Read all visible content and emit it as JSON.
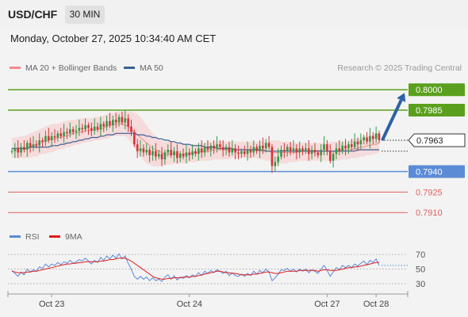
{
  "header": {
    "symbol": "USD/CHF",
    "interval": "30 MIN"
  },
  "timestamp": "Monday, October 27, 2025 10:34:40 AM CET",
  "legend_main": {
    "ma20_label": "MA 20 + Bollinger Bands",
    "ma50_label": "MA 50"
  },
  "credit": "Research © 2025 Trading Central",
  "legend_rsi": {
    "rsi_label": "RSI",
    "ma_label": "9MA"
  },
  "colors": {
    "resistance": "#5aa01e",
    "support": "#5b8bd5",
    "support_minor": "#e06060",
    "candle_up": "#2f9a47",
    "candle_down": "#d6333a",
    "bollinger_fill": "#f6d3d3",
    "ma20": "#f18b8b",
    "ma50": "#3a5f97",
    "arrow": "#2c62a8",
    "rsi": "#5c8ad8",
    "rsi_ma": "#e01b1b"
  },
  "chart_data": [
    {
      "type": "candlestick",
      "title": "USD/CHF",
      "ylim": [
        0.7902,
        0.801
      ],
      "x_ticks": [
        {
          "label": "Oct 23",
          "index": 13
        },
        {
          "label": "Oct 24",
          "index": 58
        },
        {
          "label": "Oct 27",
          "index": 103
        },
        {
          "label": "Oct 28",
          "index": 119
        }
      ],
      "current_price": {
        "label": "0.7963",
        "value": 0.7963
      },
      "levels": [
        {
          "label": "0.8000",
          "value": 0.8,
          "kind": "resistance",
          "badge": true
        },
        {
          "label": "0.7985",
          "value": 0.7985,
          "kind": "resistance",
          "badge": true
        },
        {
          "label": "0.7940",
          "value": 0.794,
          "kind": "support",
          "badge": true
        },
        {
          "label": "0.7925",
          "value": 0.7925,
          "kind": "support_minor",
          "badge": false
        },
        {
          "label": "0.7910",
          "value": 0.791,
          "kind": "support_minor",
          "badge": false
        }
      ],
      "target_arrow": {
        "from": 0.7963,
        "to": 0.8
      },
      "close": [
        0.7955,
        0.7957,
        0.7954,
        0.7958,
        0.7956,
        0.7961,
        0.7958,
        0.796,
        0.7959,
        0.7963,
        0.7962,
        0.7966,
        0.7963,
        0.7966,
        0.7965,
        0.7968,
        0.7966,
        0.7969,
        0.7968,
        0.7971,
        0.7969,
        0.797,
        0.7972,
        0.7971,
        0.7974,
        0.7972,
        0.797,
        0.7973,
        0.7971,
        0.7975,
        0.7973,
        0.7977,
        0.7974,
        0.7978,
        0.7976,
        0.798,
        0.7976,
        0.7979,
        0.7973,
        0.7969,
        0.796,
        0.7955,
        0.7957,
        0.7954,
        0.7956,
        0.7952,
        0.7955,
        0.7951,
        0.7953,
        0.7949,
        0.7954,
        0.7956,
        0.7952,
        0.7955,
        0.795,
        0.7953,
        0.7951,
        0.7954,
        0.7952,
        0.7955,
        0.7953,
        0.7957,
        0.7954,
        0.7958,
        0.7956,
        0.7959,
        0.7957,
        0.796,
        0.7958,
        0.7956,
        0.7958,
        0.7954,
        0.7957,
        0.7954,
        0.7953,
        0.7955,
        0.7953,
        0.7956,
        0.7954,
        0.7958,
        0.7955,
        0.7959,
        0.7957,
        0.7961,
        0.7958,
        0.7944,
        0.7947,
        0.7951,
        0.7956,
        0.7955,
        0.7958,
        0.7955,
        0.7957,
        0.7954,
        0.7957,
        0.7955,
        0.7957,
        0.7953,
        0.7956,
        0.7954,
        0.7952,
        0.7956,
        0.796,
        0.7955,
        0.7948,
        0.7953,
        0.7957,
        0.7955,
        0.7959,
        0.7957,
        0.796,
        0.7958,
        0.7962,
        0.796,
        0.7963,
        0.7965,
        0.7962,
        0.7966,
        0.7964,
        0.7968,
        0.7963
      ],
      "ma20": [
        0.7957,
        0.7957,
        0.7957,
        0.7957,
        0.7957,
        0.7957,
        0.7958,
        0.7959,
        0.796,
        0.7961,
        0.7962,
        0.7962,
        0.7963,
        0.7964,
        0.7964,
        0.7965,
        0.7965,
        0.7966,
        0.7966,
        0.7967,
        0.7968,
        0.7968,
        0.7969,
        0.7969,
        0.797,
        0.797,
        0.797,
        0.7971,
        0.7971,
        0.7971,
        0.7972,
        0.7973,
        0.7974,
        0.7974,
        0.7975,
        0.7975,
        0.7975,
        0.7974,
        0.7973,
        0.7971,
        0.7969,
        0.7967,
        0.7965,
        0.7963,
        0.7961,
        0.7959,
        0.7957,
        0.7956,
        0.7955,
        0.7954,
        0.7953,
        0.7953,
        0.7953,
        0.7953,
        0.7953,
        0.7953,
        0.7953,
        0.7953,
        0.7953,
        0.7954,
        0.7954,
        0.7954,
        0.7955,
        0.7955,
        0.7955,
        0.7955,
        0.7956,
        0.7956,
        0.7956,
        0.7956,
        0.7956,
        0.7956,
        0.7956,
        0.7956,
        0.7956,
        0.7956,
        0.7956,
        0.7956,
        0.7956,
        0.7956,
        0.7956,
        0.7955,
        0.7955,
        0.7955,
        0.7955,
        0.7954,
        0.7954,
        0.7954,
        0.7954,
        0.7954,
        0.7954,
        0.7954,
        0.7954,
        0.7954,
        0.7955,
        0.7955,
        0.7955,
        0.7955,
        0.7955,
        0.7955,
        0.7955,
        0.7955,
        0.7955,
        0.7955,
        0.7955,
        0.7955,
        0.7955,
        0.7955,
        0.7956,
        0.7956,
        0.7956,
        0.7956,
        0.7957,
        0.7957,
        0.7958,
        0.7958,
        0.7959,
        0.7959,
        0.796,
        0.796,
        0.7961
      ],
      "ma50": [
        0.7957,
        0.7957,
        0.7957,
        0.7957,
        0.7957,
        0.7957,
        0.7958,
        0.7958,
        0.7958,
        0.7958,
        0.7958,
        0.7958,
        0.7958,
        0.7959,
        0.7959,
        0.7959,
        0.796,
        0.796,
        0.7961,
        0.7961,
        0.7962,
        0.7962,
        0.7963,
        0.7963,
        0.7964,
        0.7964,
        0.7965,
        0.7965,
        0.7965,
        0.7966,
        0.7966,
        0.7967,
        0.7967,
        0.7967,
        0.7968,
        0.7968,
        0.7968,
        0.7968,
        0.7968,
        0.7968,
        0.7968,
        0.7967,
        0.7967,
        0.7967,
        0.7966,
        0.7966,
        0.7965,
        0.7965,
        0.7964,
        0.7964,
        0.7963,
        0.7963,
        0.7962,
        0.7962,
        0.7961,
        0.7961,
        0.796,
        0.796,
        0.796,
        0.7959,
        0.7959,
        0.7959,
        0.7959,
        0.7958,
        0.7958,
        0.7958,
        0.7958,
        0.7957,
        0.7957,
        0.7957,
        0.7957,
        0.7957,
        0.7957,
        0.7956,
        0.7956,
        0.7956,
        0.7956,
        0.7956,
        0.7956,
        0.7956,
        0.7956,
        0.7956,
        0.7956,
        0.7955,
        0.7955,
        0.7955,
        0.7955,
        0.7955,
        0.7955,
        0.7955,
        0.7955,
        0.7955,
        0.7955,
        0.7955,
        0.7955,
        0.7955,
        0.7955,
        0.7955,
        0.7955,
        0.7955,
        0.7955,
        0.7955,
        0.7955,
        0.7955,
        0.7955,
        0.7955,
        0.7955,
        0.7955,
        0.7955,
        0.7955,
        0.7955,
        0.7955,
        0.7955,
        0.7956,
        0.7956,
        0.7956,
        0.7956,
        0.7956,
        0.7956,
        0.7956,
        0.7956
      ],
      "bb_upper": [
        0.7965,
        0.7965,
        0.7965,
        0.7966,
        0.7966,
        0.7967,
        0.7968,
        0.7969,
        0.797,
        0.7971,
        0.7972,
        0.7973,
        0.7974,
        0.7975,
        0.7975,
        0.7975,
        0.7976,
        0.7977,
        0.7977,
        0.7978,
        0.7978,
        0.7978,
        0.7979,
        0.7979,
        0.7979,
        0.7979,
        0.7979,
        0.798,
        0.798,
        0.7981,
        0.7981,
        0.7982,
        0.7983,
        0.7983,
        0.7984,
        0.7984,
        0.7984,
        0.7984,
        0.7984,
        0.7984,
        0.7983,
        0.7982,
        0.798,
        0.7977,
        0.7974,
        0.7971,
        0.7968,
        0.7966,
        0.7964,
        0.7963,
        0.7962,
        0.7962,
        0.7962,
        0.7962,
        0.7961,
        0.7961,
        0.7961,
        0.796,
        0.796,
        0.796,
        0.796,
        0.796,
        0.7961,
        0.7961,
        0.7962,
        0.7962,
        0.7962,
        0.7962,
        0.7962,
        0.7962,
        0.7962,
        0.7962,
        0.7962,
        0.7962,
        0.7962,
        0.7962,
        0.7962,
        0.7962,
        0.7962,
        0.7962,
        0.7962,
        0.7962,
        0.7962,
        0.7962,
        0.7962,
        0.7963,
        0.7963,
        0.7963,
        0.7962,
        0.7962,
        0.7962,
        0.7961,
        0.7961,
        0.7961,
        0.7961,
        0.7961,
        0.7961,
        0.7961,
        0.7961,
        0.7961,
        0.7961,
        0.7961,
        0.7961,
        0.7961,
        0.7962,
        0.7962,
        0.7962,
        0.7962,
        0.7962,
        0.7962,
        0.7963,
        0.7963,
        0.7964,
        0.7964,
        0.7965,
        0.7966,
        0.7966,
        0.7967,
        0.7967,
        0.7968,
        0.7968
      ],
      "bb_lower": [
        0.795,
        0.795,
        0.795,
        0.795,
        0.795,
        0.795,
        0.795,
        0.7951,
        0.7951,
        0.7952,
        0.7953,
        0.7953,
        0.7954,
        0.7954,
        0.7955,
        0.7956,
        0.7956,
        0.7957,
        0.7958,
        0.7958,
        0.7959,
        0.796,
        0.796,
        0.7961,
        0.7961,
        0.7962,
        0.7962,
        0.7963,
        0.7963,
        0.7963,
        0.7964,
        0.7964,
        0.7965,
        0.7966,
        0.7966,
        0.7966,
        0.7966,
        0.7966,
        0.7964,
        0.7961,
        0.7958,
        0.7954,
        0.7951,
        0.7948,
        0.7946,
        0.7945,
        0.7944,
        0.7944,
        0.7944,
        0.7944,
        0.7945,
        0.7945,
        0.7945,
        0.7946,
        0.7946,
        0.7946,
        0.7946,
        0.7946,
        0.7947,
        0.7947,
        0.7947,
        0.7948,
        0.7948,
        0.7948,
        0.7948,
        0.7948,
        0.7949,
        0.7949,
        0.7949,
        0.7949,
        0.7949,
        0.7949,
        0.795,
        0.795,
        0.795,
        0.795,
        0.795,
        0.795,
        0.795,
        0.795,
        0.795,
        0.7949,
        0.7949,
        0.7948,
        0.7948,
        0.7946,
        0.7945,
        0.7945,
        0.7946,
        0.7946,
        0.7946,
        0.7947,
        0.7947,
        0.7947,
        0.7948,
        0.7948,
        0.7948,
        0.7948,
        0.7948,
        0.7948,
        0.7948,
        0.7948,
        0.7948,
        0.7948,
        0.7947,
        0.7948,
        0.7948,
        0.7948,
        0.7949,
        0.7949,
        0.7949,
        0.795,
        0.795,
        0.795,
        0.7951,
        0.7951,
        0.7952,
        0.7952,
        0.7953,
        0.7953,
        0.7954
      ]
    },
    {
      "type": "line",
      "title": "RSI",
      "ylim": [
        20,
        80
      ],
      "y_ticks": [
        70,
        50,
        30
      ],
      "series": [
        {
          "name": "RSI",
          "values": [
            48,
            44,
            40,
            46,
            42,
            50,
            46,
            49,
            47,
            53,
            51,
            57,
            53,
            57,
            55,
            59,
            56,
            60,
            58,
            62,
            58,
            60,
            63,
            61,
            65,
            61,
            57,
            62,
            59,
            66,
            62,
            68,
            64,
            69,
            65,
            71,
            64,
            68,
            58,
            50,
            40,
            36,
            40,
            36,
            39,
            34,
            38,
            34,
            36,
            33,
            39,
            42,
            36,
            41,
            35,
            39,
            37,
            41,
            38,
            42,
            40,
            45,
            41,
            47,
            44,
            48,
            45,
            49,
            47,
            44,
            47,
            41,
            45,
            41,
            40,
            43,
            40,
            44,
            41,
            47,
            43,
            48,
            45,
            50,
            46,
            34,
            38,
            43,
            49,
            48,
            51,
            47,
            50,
            46,
            50,
            47,
            50,
            45,
            49,
            47,
            44,
            50,
            55,
            48,
            40,
            46,
            52,
            49,
            55,
            52,
            55,
            52,
            57,
            54,
            58,
            61,
            56,
            62,
            59,
            64,
            55
          ]
        },
        {
          "name": "9MA",
          "values": [
            47,
            46,
            45,
            45,
            45,
            46,
            46,
            47,
            47,
            48,
            49,
            50,
            51,
            52,
            53,
            54,
            55,
            56,
            57,
            57,
            58,
            58,
            59,
            59,
            60,
            60,
            60,
            60,
            60,
            61,
            61,
            62,
            63,
            63,
            64,
            65,
            65,
            65,
            63,
            61,
            58,
            55,
            52,
            49,
            46,
            43,
            40,
            38,
            37,
            36,
            36,
            37,
            37,
            38,
            38,
            38,
            39,
            39,
            39,
            40,
            40,
            41,
            42,
            43,
            44,
            45,
            46,
            47,
            47,
            46,
            45,
            45,
            44,
            44,
            43,
            42,
            42,
            42,
            42,
            43,
            43,
            44,
            45,
            46,
            46,
            45,
            44,
            44,
            45,
            46,
            47,
            47,
            47,
            47,
            48,
            48,
            48,
            48,
            48,
            48,
            47,
            48,
            49,
            49,
            48,
            48,
            48,
            49,
            50,
            51,
            52,
            52,
            53,
            53,
            54,
            55,
            56,
            57,
            58,
            59,
            59
          ]
        }
      ]
    }
  ]
}
